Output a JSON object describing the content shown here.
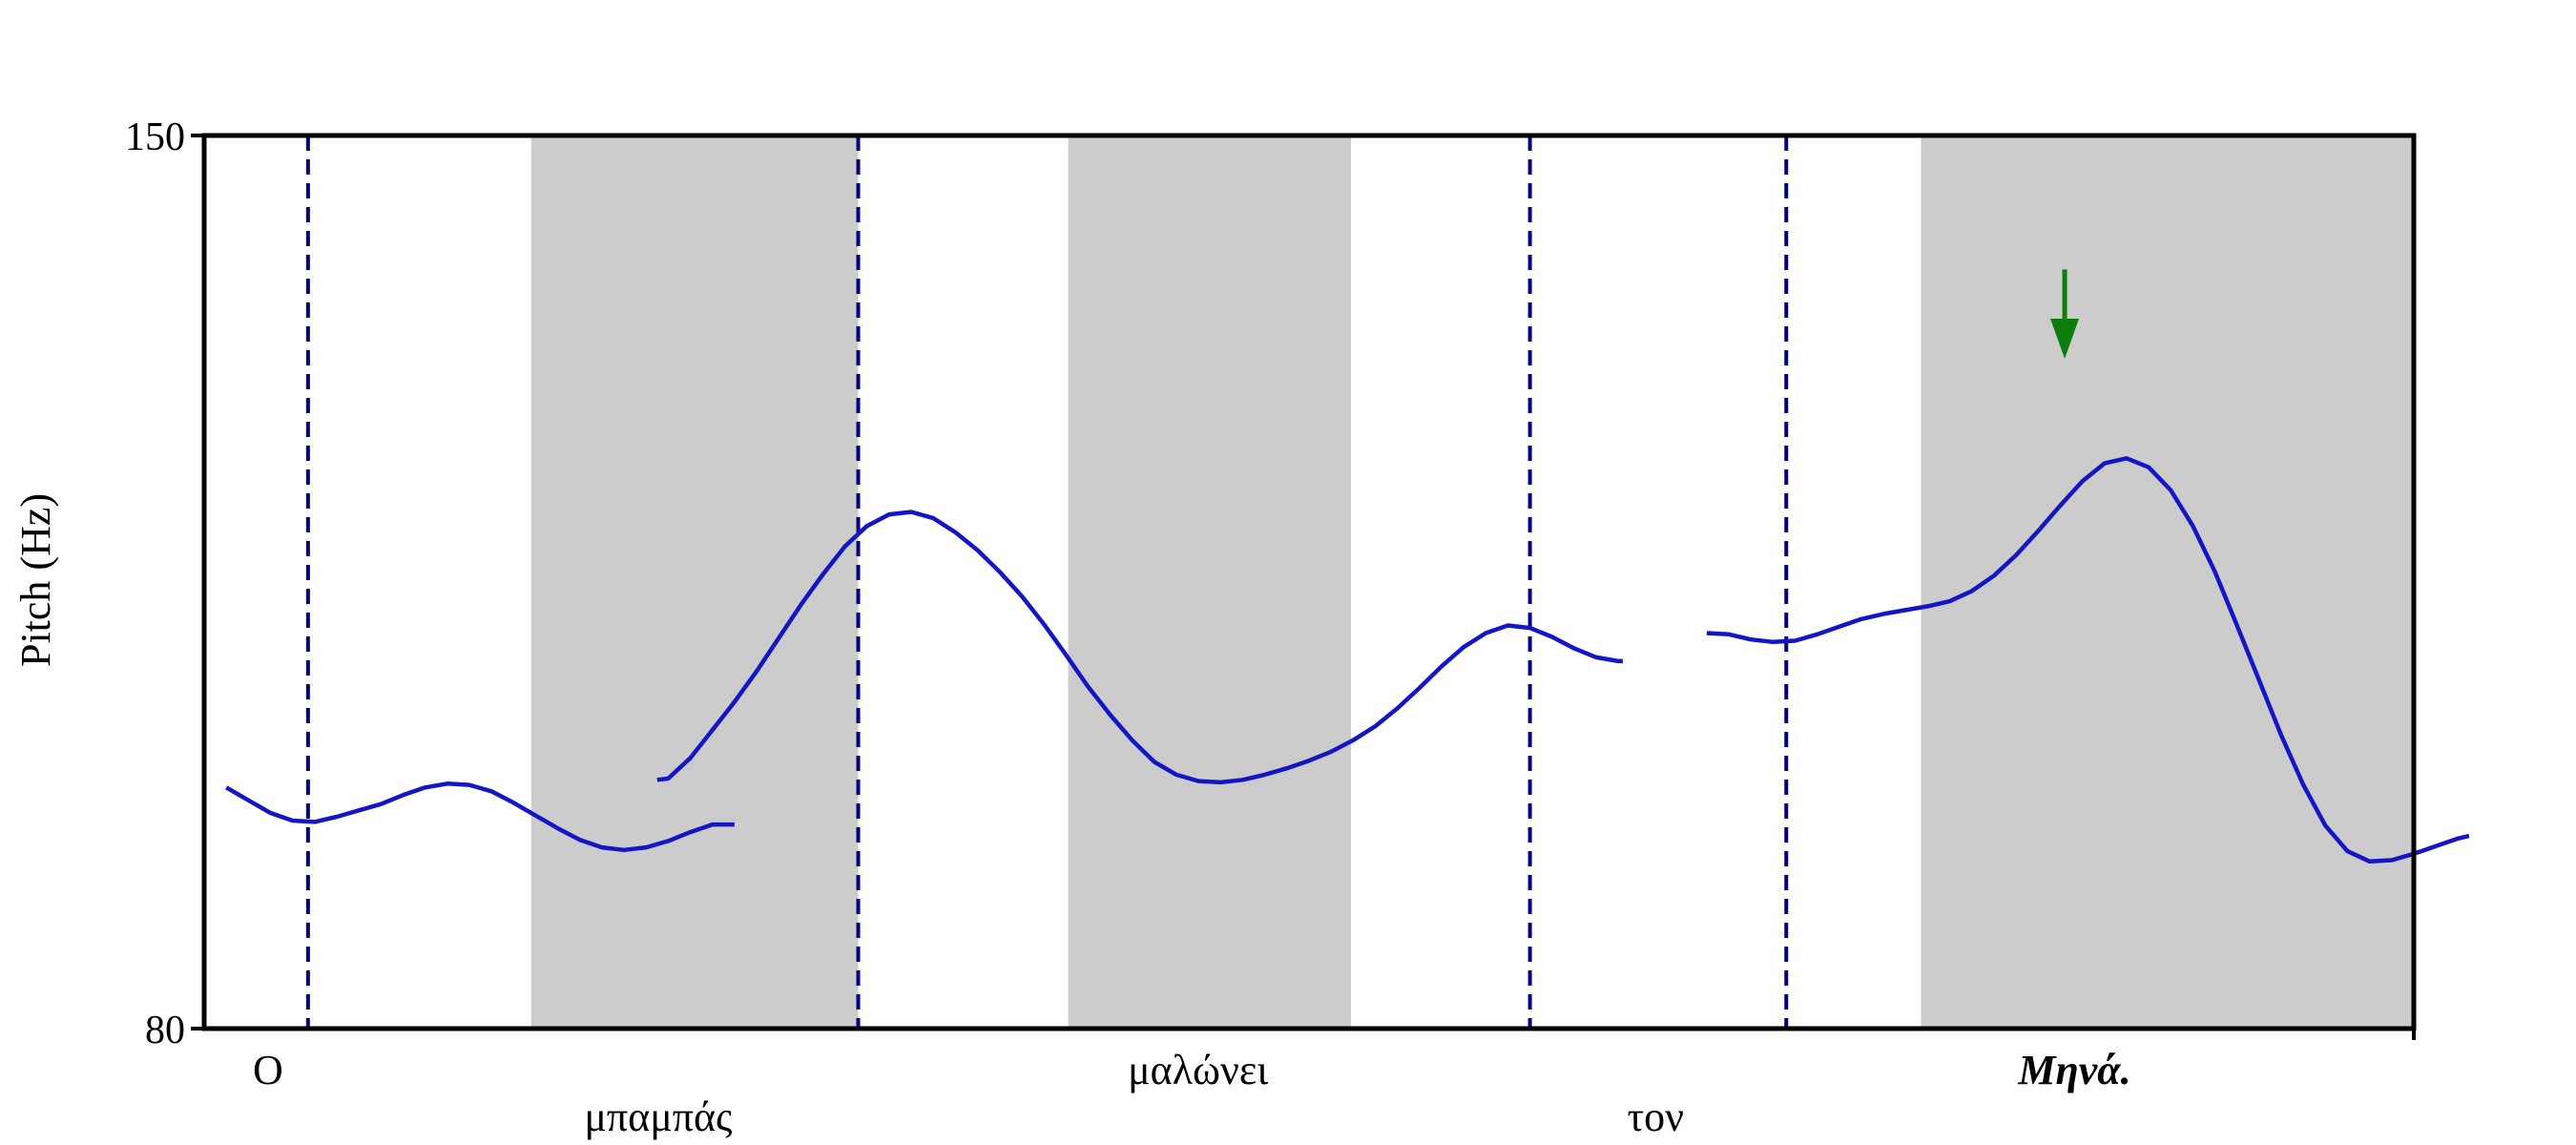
{
  "chart_data": {
    "type": "line",
    "title": "",
    "xlabel": "",
    "ylabel": "Pitch (Hz)",
    "ylim": [
      80,
      150
    ],
    "xlim": [
      0,
      1
    ],
    "yticks": [
      "150",
      "80"
    ],
    "grid": false,
    "legend": "none",
    "colors": {
      "pitch": "#1515c8",
      "boundary": "#000080",
      "shade": "#cccccc",
      "arrow": "#0d7d0d"
    },
    "shaded_regions": [
      {
        "x0": 0.148,
        "x1": 0.296
      },
      {
        "x0": 0.391,
        "x1": 0.519
      },
      {
        "x0": 0.777,
        "x1": 1.0
      }
    ],
    "boundaries": [
      0.047,
      0.296,
      0.6,
      0.716
    ],
    "words": [
      {
        "text": "Ο",
        "x": 0.022,
        "row": 1,
        "bold": false
      },
      {
        "text": "μπαμπάς",
        "x": 0.172,
        "row": 2,
        "bold": false
      },
      {
        "text": "μαλώνει",
        "x": 0.418,
        "row": 1,
        "bold": false
      },
      {
        "text": "τον",
        "x": 0.644,
        "row": 2,
        "bold": false
      },
      {
        "text": "Μηνά.",
        "x": 0.821,
        "row": 1,
        "bold": true
      }
    ],
    "arrow": {
      "x": 0.842,
      "y_top": 139.5,
      "y_bottom": 132.5
    },
    "series": [
      {
        "segments": [
          [
            [
              0.01,
              98.9
            ],
            [
              0.02,
              97.9
            ],
            [
              0.03,
              96.9
            ],
            [
              0.04,
              96.3
            ],
            [
              0.05,
              96.2
            ],
            [
              0.06,
              96.6
            ],
            [
              0.07,
              97.1
            ],
            [
              0.08,
              97.6
            ],
            [
              0.09,
              98.3
            ],
            [
              0.1,
              98.9
            ],
            [
              0.11,
              99.2
            ],
            [
              0.12,
              99.1
            ],
            [
              0.13,
              98.6
            ],
            [
              0.14,
              97.7
            ],
            [
              0.15,
              96.7
            ],
            [
              0.16,
              95.7
            ],
            [
              0.17,
              94.8
            ],
            [
              0.18,
              94.2
            ],
            [
              0.19,
              94.0
            ],
            [
              0.2,
              94.2
            ],
            [
              0.21,
              94.7
            ],
            [
              0.22,
              95.4
            ],
            [
              0.23,
              96.0
            ],
            [
              0.24,
              96.0
            ]
          ],
          [
            [
              0.205,
              99.5
            ],
            [
              0.21,
              99.6
            ],
            [
              0.22,
              101.2
            ],
            [
              0.23,
              103.4
            ],
            [
              0.24,
              105.6
            ],
            [
              0.25,
              108.0
            ],
            [
              0.26,
              110.6
            ],
            [
              0.27,
              113.2
            ],
            [
              0.28,
              115.6
            ],
            [
              0.29,
              117.8
            ],
            [
              0.3,
              119.4
            ],
            [
              0.31,
              120.3
            ],
            [
              0.32,
              120.5
            ],
            [
              0.33,
              120.0
            ],
            [
              0.34,
              118.9
            ],
            [
              0.35,
              117.5
            ],
            [
              0.36,
              115.8
            ],
            [
              0.37,
              113.9
            ],
            [
              0.38,
              111.7
            ],
            [
              0.39,
              109.3
            ],
            [
              0.4,
              106.8
            ],
            [
              0.41,
              104.6
            ],
            [
              0.42,
              102.6
            ],
            [
              0.43,
              100.9
            ],
            [
              0.44,
              99.9
            ],
            [
              0.45,
              99.4
            ],
            [
              0.46,
              99.3
            ],
            [
              0.47,
              99.5
            ],
            [
              0.48,
              99.9
            ],
            [
              0.49,
              100.4
            ],
            [
              0.5,
              101.0
            ],
            [
              0.51,
              101.7
            ],
            [
              0.52,
              102.6
            ],
            [
              0.53,
              103.7
            ],
            [
              0.54,
              105.1
            ],
            [
              0.55,
              106.7
            ],
            [
              0.56,
              108.4
            ],
            [
              0.57,
              109.9
            ],
            [
              0.58,
              111.0
            ],
            [
              0.59,
              111.6
            ],
            [
              0.6,
              111.4
            ],
            [
              0.61,
              110.7
            ],
            [
              0.62,
              109.8
            ],
            [
              0.63,
              109.1
            ],
            [
              0.64,
              108.8
            ],
            [
              0.642,
              108.8
            ]
          ],
          [
            [
              0.68,
              111.0
            ],
            [
              0.69,
              110.9
            ],
            [
              0.7,
              110.5
            ],
            [
              0.71,
              110.3
            ],
            [
              0.72,
              110.4
            ],
            [
              0.73,
              110.9
            ],
            [
              0.74,
              111.5
            ],
            [
              0.75,
              112.1
            ],
            [
              0.76,
              112.5
            ],
            [
              0.77,
              112.8
            ],
            [
              0.78,
              113.1
            ],
            [
              0.79,
              113.5
            ],
            [
              0.8,
              114.3
            ],
            [
              0.81,
              115.5
            ],
            [
              0.82,
              117.1
            ],
            [
              0.83,
              119.0
            ],
            [
              0.84,
              121.0
            ],
            [
              0.85,
              122.9
            ],
            [
              0.86,
              124.3
            ],
            [
              0.87,
              124.7
            ],
            [
              0.88,
              124.0
            ],
            [
              0.89,
              122.2
            ],
            [
              0.9,
              119.4
            ],
            [
              0.91,
              115.8
            ],
            [
              0.92,
              111.6
            ],
            [
              0.93,
              107.3
            ],
            [
              0.94,
              103.0
            ],
            [
              0.95,
              99.1
            ],
            [
              0.96,
              95.9
            ],
            [
              0.97,
              93.9
            ],
            [
              0.98,
              93.1
            ],
            [
              0.99,
              93.2
            ],
            [
              1.0,
              93.7
            ],
            [
              1.01,
              94.3
            ],
            [
              1.02,
              94.9
            ],
            [
              1.025,
              95.1
            ]
          ]
        ]
      }
    ]
  }
}
